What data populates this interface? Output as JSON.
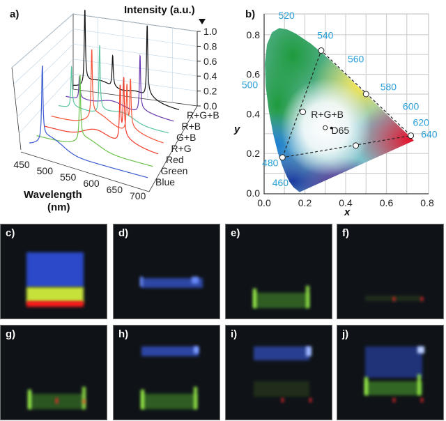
{
  "chart_data": [
    {
      "type": "line",
      "panel_label": "a)",
      "projection": "3d-waterfall",
      "xlabel": "Wavelength (nm)",
      "xlabel_line1": "Wavelength",
      "xlabel_line2": "(nm)",
      "zlabel": "Intensity (a.u.)",
      "xticks": [
        "450",
        "500",
        "550",
        "600",
        "650",
        "700"
      ],
      "zticks": [
        "0.0",
        "0.2",
        "0.4",
        "0.6",
        "0.8",
        "1.0"
      ],
      "xlim": [
        450,
        705
      ],
      "zlim": [
        0,
        1.0
      ],
      "series": [
        {
          "name": "Blue",
          "color": "#3a5bd0",
          "peaks": [
            [
              478,
              1.0
            ]
          ],
          "bands": [
            [
              500,
              0.12
            ]
          ]
        },
        {
          "name": "Green",
          "color": "#6cc24a",
          "peaks": [
            [
              545,
              0.88
            ]
          ],
          "bands": [
            [
              565,
              0.08
            ]
          ]
        },
        {
          "name": "Red",
          "color": "#f03a2a",
          "peaks": [
            [
              620,
              0.72
            ],
            [
              628,
              0.8
            ]
          ],
          "bands": [
            [
              565,
              0.12
            ]
          ]
        },
        {
          "name": "R+G",
          "color": "#f5553a",
          "peaks": [
            [
              542,
              0.9
            ],
            [
              622,
              0.6
            ],
            [
              630,
              0.65
            ]
          ],
          "bands": [
            [
              560,
              0.12
            ]
          ]
        },
        {
          "name": "G+B",
          "color": "#5cc6a0",
          "peaks": [
            [
              480,
              0.55
            ],
            [
              545,
              0.9
            ]
          ],
          "bands": [
            [
              600,
              0.1
            ]
          ]
        },
        {
          "name": "R+B",
          "color": "#6a3ab0",
          "peaks": [
            [
              482,
              0.3
            ],
            [
              625,
              0.75
            ]
          ],
          "bands": [
            [
              560,
              0.08
            ]
          ]
        },
        {
          "name": "R+G+B",
          "color": "#111111",
          "peaks": [
            [
              478,
              1.0
            ],
            [
              545,
              0.42
            ],
            [
              628,
              0.95
            ]
          ],
          "bands": [
            [
              520,
              0.12
            ],
            [
              600,
              0.1
            ]
          ]
        }
      ]
    },
    {
      "type": "scatter",
      "panel_label": "b)",
      "xlabel": "x",
      "ylabel": "y",
      "xlim": [
        0,
        0.8
      ],
      "ylim": [
        0,
        0.9
      ],
      "grid": true,
      "xticks": [
        "0.0",
        "0.2",
        "0.4",
        "0.6",
        "0.8"
      ],
      "yticks": [
        "0.0",
        "0.2",
        "0.4",
        "0.6",
        "0.8"
      ],
      "wavelength_labels": [
        {
          "text": "520",
          "x": 0.11,
          "y": 0.88
        },
        {
          "text": "540",
          "x": 0.3,
          "y": 0.78
        },
        {
          "text": "560",
          "x": 0.45,
          "y": 0.66
        },
        {
          "text": "580",
          "x": 0.61,
          "y": 0.52
        },
        {
          "text": "600",
          "x": 0.72,
          "y": 0.42
        },
        {
          "text": "620",
          "x": 0.77,
          "y": 0.34
        },
        {
          "text": "640",
          "x": 0.81,
          "y": 0.28
        },
        {
          "text": "500",
          "x": -0.07,
          "y": 0.53
        },
        {
          "text": "480",
          "x": 0.03,
          "y": 0.135
        },
        {
          "text": "460",
          "x": 0.08,
          "y": 0.035
        }
      ],
      "points": [
        {
          "name": "Blue",
          "x": 0.09,
          "y": 0.18
        },
        {
          "name": "Green",
          "x": 0.28,
          "y": 0.72
        },
        {
          "name": "R+G",
          "x": 0.5,
          "y": 0.5
        },
        {
          "name": "Red",
          "x": 0.72,
          "y": 0.29
        },
        {
          "name": "R+B",
          "x": 0.45,
          "y": 0.24
        },
        {
          "name": "G+B",
          "x": 0.19,
          "y": 0.41
        },
        {
          "name": "R+G+B",
          "x": 0.3,
          "y": 0.33
        }
      ],
      "annotations": [
        {
          "text": "R+G+B",
          "x": 0.23,
          "y": 0.38
        },
        {
          "text": "D65",
          "x": 0.33,
          "y": 0.3
        }
      ],
      "d65": {
        "x": 0.3127,
        "y": 0.329
      },
      "gamut_triangle": [
        "Blue",
        "Green",
        "Red"
      ]
    }
  ],
  "photos": [
    {
      "label": "c)",
      "content": "full"
    },
    {
      "label": "d)",
      "content": "blue"
    },
    {
      "label": "e)",
      "content": "green"
    },
    {
      "label": "f)",
      "content": "red"
    },
    {
      "label": "g)",
      "content": "red-green"
    },
    {
      "label": "h)",
      "content": "green-blue"
    },
    {
      "label": "i)",
      "content": "red-blue"
    },
    {
      "label": "j)",
      "content": "red-green-blue"
    }
  ],
  "colors": {
    "wavelength_label": "#2a9fd8",
    "photo_background": "#0f1318"
  }
}
